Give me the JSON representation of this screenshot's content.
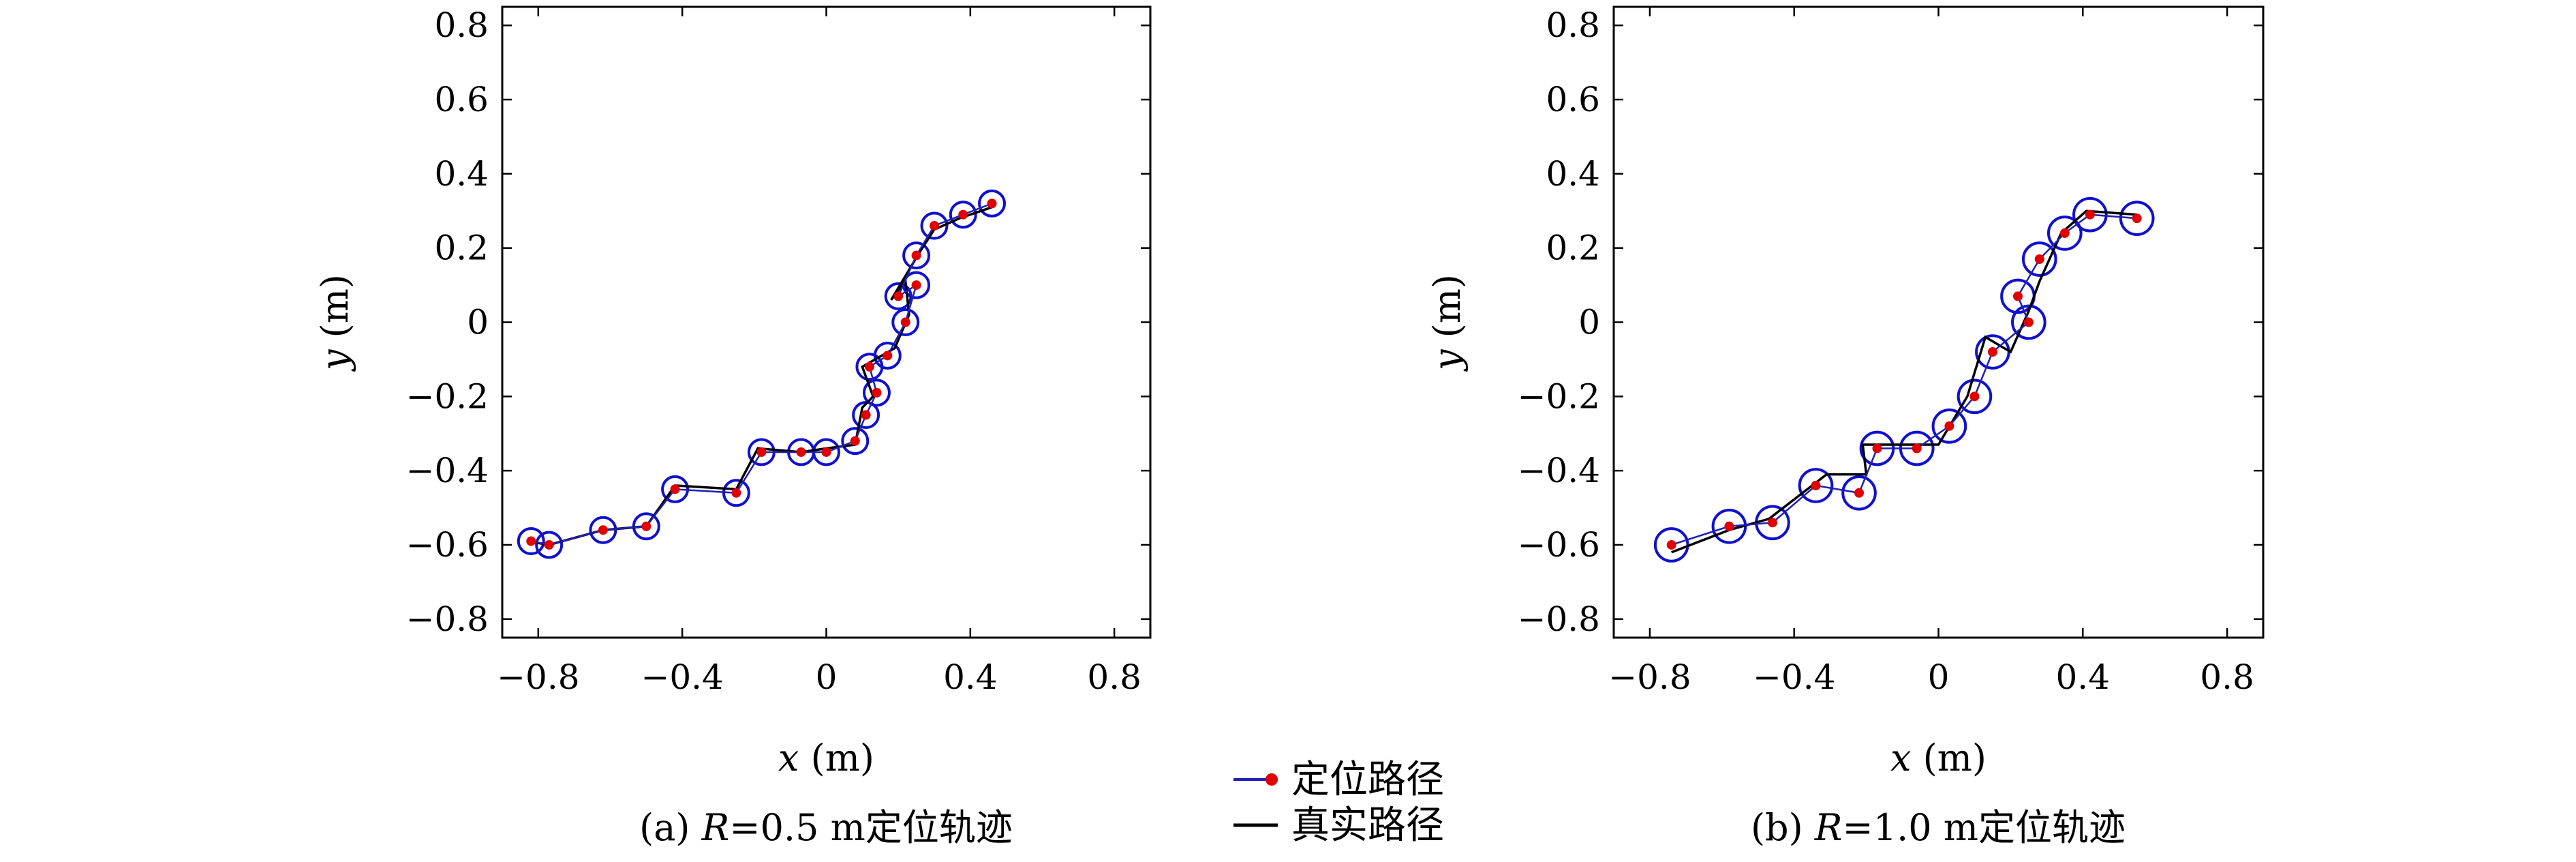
{
  "chart_data": [
    {
      "type": "line",
      "xlim": [
        -0.9,
        0.9
      ],
      "ylim": [
        -0.85,
        0.85
      ],
      "xticks": [
        -0.8,
        -0.4,
        0,
        0.4,
        0.8
      ],
      "yticks": [
        0.8,
        0.6,
        0.4,
        0.2,
        0,
        -0.2,
        -0.4,
        -0.6,
        -0.8
      ],
      "xtick_labels": [
        "−0.8",
        "−0.4",
        "0",
        "0.4",
        "0.8"
      ],
      "ytick_labels": [
        "0.8",
        "0.6",
        "0.4",
        "0.2",
        "0",
        "−0.2",
        "−0.4",
        "−0.6",
        "−0.8"
      ],
      "xlabel": {
        "var": "x",
        "unit": "(m)"
      },
      "ylabel": {
        "var": "y",
        "unit": "(m)"
      },
      "caption": {
        "prefix": "(a) ",
        "var": "R",
        "rest": "=0.5 m定位轨迹"
      },
      "circle_radius": 0.035,
      "series": [
        {
          "name": "定位路径",
          "x": [
            -0.82,
            -0.77,
            -0.62,
            -0.5,
            -0.42,
            -0.25,
            -0.18,
            -0.07,
            0.0,
            0.08,
            0.11,
            0.14,
            0.12,
            0.17,
            0.22,
            0.25,
            0.2,
            0.25,
            0.3,
            0.38,
            0.46
          ],
          "y": [
            -0.59,
            -0.6,
            -0.56,
            -0.55,
            -0.45,
            -0.46,
            -0.35,
            -0.35,
            -0.35,
            -0.32,
            -0.25,
            -0.19,
            -0.12,
            -0.09,
            0.0,
            0.1,
            0.07,
            0.18,
            0.26,
            0.29,
            0.32
          ]
        },
        {
          "name": "真实路径",
          "x": [
            -0.83,
            -0.77,
            -0.62,
            -0.5,
            -0.42,
            -0.25,
            -0.19,
            -0.07,
            0.0,
            0.08,
            0.1,
            0.13,
            0.1,
            0.19,
            0.23,
            0.22,
            0.18,
            0.26,
            0.3,
            0.37,
            0.46
          ],
          "y": [
            -0.59,
            -0.6,
            -0.56,
            -0.55,
            -0.44,
            -0.45,
            -0.34,
            -0.35,
            -0.34,
            -0.33,
            -0.23,
            -0.2,
            -0.12,
            -0.07,
            0.02,
            0.11,
            0.06,
            0.19,
            0.25,
            0.28,
            0.31
          ]
        }
      ]
    },
    {
      "type": "line",
      "xlim": [
        -0.9,
        0.9
      ],
      "ylim": [
        -0.85,
        0.85
      ],
      "xticks": [
        -0.8,
        -0.4,
        0,
        0.4,
        0.8
      ],
      "yticks": [
        0.8,
        0.6,
        0.4,
        0.2,
        0,
        -0.2,
        -0.4,
        -0.6,
        -0.8
      ],
      "xtick_labels": [
        "−0.8",
        "−0.4",
        "0",
        "0.4",
        "0.8"
      ],
      "ytick_labels": [
        "0.8",
        "0.6",
        "0.4",
        "0.2",
        "0",
        "−0.2",
        "−0.4",
        "−0.6",
        "−0.8"
      ],
      "xlabel": {
        "var": "x",
        "unit": "(m)"
      },
      "ylabel": {
        "var": "y",
        "unit": "(m)"
      },
      "caption": {
        "prefix": "(b) ",
        "var": "R",
        "rest": "=1.0 m定位轨迹"
      },
      "circle_radius": 0.045,
      "series": [
        {
          "name": "定位路径",
          "x": [
            -0.74,
            -0.58,
            -0.46,
            -0.34,
            -0.22,
            -0.17,
            -0.06,
            0.03,
            0.1,
            0.15,
            0.25,
            0.22,
            0.28,
            0.35,
            0.42,
            0.55
          ],
          "y": [
            -0.6,
            -0.55,
            -0.54,
            -0.44,
            -0.46,
            -0.34,
            -0.34,
            -0.28,
            -0.2,
            -0.08,
            0.0,
            0.07,
            0.17,
            0.24,
            0.29,
            0.28
          ]
        },
        {
          "name": "真实路径",
          "x": [
            -0.74,
            -0.58,
            -0.47,
            -0.31,
            -0.2,
            -0.21,
            -0.12,
            0.0,
            0.08,
            0.13,
            0.2,
            0.25,
            0.28,
            0.34,
            0.41,
            0.55
          ],
          "y": [
            -0.62,
            -0.56,
            -0.53,
            -0.41,
            -0.41,
            -0.33,
            -0.33,
            -0.33,
            -0.2,
            -0.04,
            -0.08,
            0.03,
            0.11,
            0.24,
            0.3,
            0.29
          ]
        }
      ]
    }
  ],
  "legend": {
    "located_label": "定位路径",
    "true_label": "真实路径"
  },
  "colors": {
    "located_line": "#1f1fb4",
    "located_marker": "#e00000",
    "circle": "#1010d0",
    "true_line": "#000000"
  }
}
